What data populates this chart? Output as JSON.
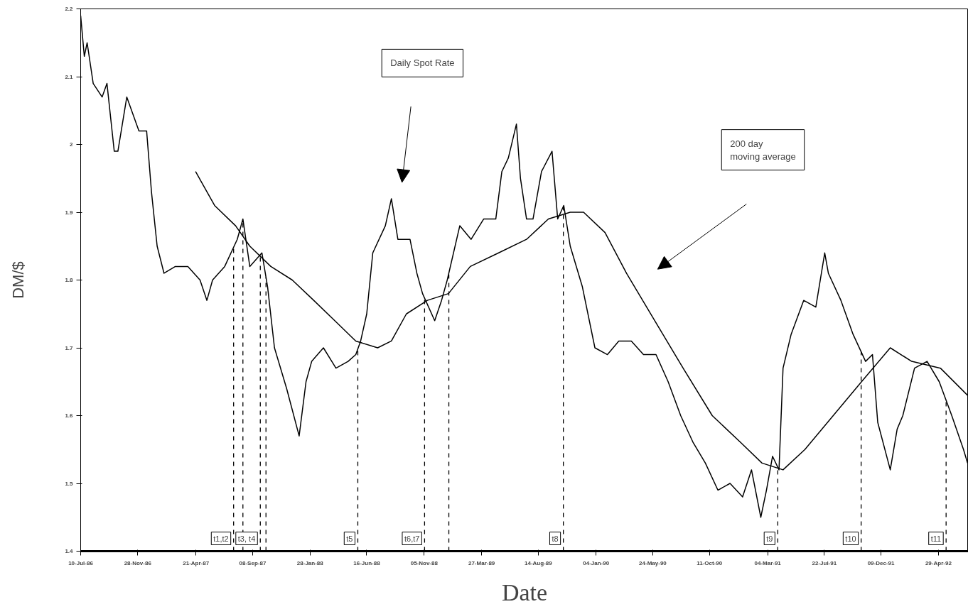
{
  "chart_data": {
    "type": "line",
    "xlabel": "Date",
    "ylabel": "DM/$",
    "xlim": [
      "1986-07-10",
      "1992-07-12"
    ],
    "ylim": [
      1.4,
      2.2
    ],
    "xticks": [
      {
        "value": "1986-07-10",
        "label": "10-Jul-86"
      },
      {
        "value": "1986-11-28",
        "label": "28-Nov-86"
      },
      {
        "value": "1987-04-21",
        "label": "21-Apr-87"
      },
      {
        "value": "1987-09-08",
        "label": "08-Sep-87"
      },
      {
        "value": "1988-01-28",
        "label": "28-Jan-88"
      },
      {
        "value": "1988-06-16",
        "label": "16-Jun-88"
      },
      {
        "value": "1988-11-05",
        "label": "05-Nov-88"
      },
      {
        "value": "1989-03-27",
        "label": "27-Mar-89"
      },
      {
        "value": "1989-08-14",
        "label": "14-Aug-89"
      },
      {
        "value": "1990-01-04",
        "label": "04-Jan-90"
      },
      {
        "value": "1990-05-24",
        "label": "24-May-90"
      },
      {
        "value": "1990-10-11",
        "label": "11-Oct-90"
      },
      {
        "value": "1991-03-04",
        "label": "04-Mar-91"
      },
      {
        "value": "1991-07-22",
        "label": "22-Jul-91"
      },
      {
        "value": "1991-12-09",
        "label": "09-Dec-91"
      },
      {
        "value": "1992-04-29",
        "label": "29-Apr-92"
      }
    ],
    "yticks": [
      1.4,
      1.5,
      1.6,
      1.7,
      1.8,
      1.9,
      2,
      2.1,
      2.2
    ],
    "grid": false,
    "marker": "none",
    "line_style": "solid",
    "series": [
      {
        "color": "#000000",
        "x": [
          "1986-07-10",
          "1986-07-19",
          "1986-07-26",
          "1986-08-10",
          "1986-09-01",
          "1986-09-13",
          "1986-10-01",
          "1986-10-10",
          "1986-11-01",
          "1986-12-01",
          "1986-12-20",
          "1987-01-01",
          "1987-01-15",
          "1987-02-01",
          "1987-03-01",
          "1987-04-01",
          "1987-05-01",
          "1987-05-18",
          "1987-06-01",
          "1987-07-01",
          "1987-08-01",
          "1987-08-15",
          "1987-09-01",
          "1987-10-01",
          "1987-10-15",
          "1987-11-01",
          "1987-12-01",
          "1988-01-01",
          "1988-01-18",
          "1988-02-01",
          "1988-03-01",
          "1988-04-01",
          "1988-05-01",
          "1988-05-20",
          "1988-06-01",
          "1988-06-16",
          "1988-07-01",
          "1988-08-01",
          "1988-08-16",
          "1988-09-01",
          "1988-10-01",
          "1988-10-18",
          "1988-11-01",
          "1988-12-01",
          "1988-12-18",
          "1989-01-01",
          "1989-02-01",
          "1989-03-01",
          "1989-04-01",
          "1989-05-01",
          "1989-05-16",
          "1989-06-01",
          "1989-06-21",
          "1989-07-01",
          "1989-07-16",
          "1989-08-01",
          "1989-08-22",
          "1989-09-17",
          "1989-10-01",
          "1989-10-16",
          "1989-11-01",
          "1989-12-01",
          "1990-01-01",
          "1990-02-01",
          "1990-03-01",
          "1990-04-01",
          "1990-05-01",
          "1990-06-01",
          "1990-07-01",
          "1990-08-01",
          "1990-09-01",
          "1990-10-01",
          "1990-11-01",
          "1990-12-01",
          "1991-01-01",
          "1991-01-23",
          "1991-02-15",
          "1991-03-01",
          "1991-03-16",
          "1991-04-01",
          "1991-04-11",
          "1991-05-01",
          "1991-06-01",
          "1991-07-01",
          "1991-07-23",
          "1991-08-01",
          "1991-09-01",
          "1991-10-01",
          "1991-11-01",
          "1991-11-18",
          "1991-12-01",
          "1992-01-01",
          "1992-01-18",
          "1992-02-01",
          "1992-03-01",
          "1992-04-01",
          "1992-05-01",
          "1992-06-01",
          "1992-06-30",
          "1992-07-10"
        ],
        "values": [
          2.19,
          2.13,
          2.15,
          2.09,
          2.07,
          2.09,
          1.99,
          1.99,
          2.07,
          2.02,
          2.02,
          1.93,
          1.85,
          1.81,
          1.82,
          1.82,
          1.8,
          1.77,
          1.8,
          1.82,
          1.86,
          1.89,
          1.82,
          1.84,
          1.79,
          1.7,
          1.64,
          1.57,
          1.65,
          1.68,
          1.7,
          1.67,
          1.68,
          1.69,
          1.71,
          1.75,
          1.84,
          1.88,
          1.92,
          1.86,
          1.86,
          1.81,
          1.78,
          1.74,
          1.77,
          1.8,
          1.88,
          1.86,
          1.89,
          1.89,
          1.96,
          1.98,
          2.03,
          1.95,
          1.89,
          1.89,
          1.96,
          1.99,
          1.89,
          1.91,
          1.85,
          1.79,
          1.7,
          1.69,
          1.71,
          1.71,
          1.69,
          1.69,
          1.65,
          1.6,
          1.56,
          1.53,
          1.49,
          1.5,
          1.48,
          1.52,
          1.45,
          1.49,
          1.54,
          1.52,
          1.67,
          1.72,
          1.77,
          1.76,
          1.84,
          1.81,
          1.77,
          1.72,
          1.68,
          1.69,
          1.59,
          1.52,
          1.58,
          1.6,
          1.67,
          1.68,
          1.65,
          1.6,
          1.55,
          1.53
        ]
      },
      {
        "color": "#000000",
        "x": [
          "1987-04-20",
          "1987-06-06",
          "1987-07-28",
          "1987-09-01",
          "1987-10-23",
          "1987-12-15",
          "1988-02-06",
          "1988-03-29",
          "1988-05-20",
          "1988-07-13",
          "1988-08-16",
          "1988-09-22",
          "1988-11-13",
          "1989-01-04",
          "1989-02-27",
          "1989-05-08",
          "1989-07-16",
          "1989-09-08",
          "1989-11-01",
          "1989-12-04",
          "1990-01-26",
          "1990-03-20",
          "1990-05-29",
          "1990-08-07",
          "1990-10-18",
          "1990-12-28",
          "1991-02-18",
          "1991-04-11",
          "1991-06-04",
          "1991-08-13",
          "1991-10-22",
          "1992-01-01",
          "1992-02-23",
          "1992-05-04",
          "1992-07-10"
        ],
        "values": [
          1.96,
          1.91,
          1.88,
          1.85,
          1.82,
          1.8,
          1.77,
          1.74,
          1.71,
          1.7,
          1.71,
          1.75,
          1.77,
          1.78,
          1.82,
          1.84,
          1.86,
          1.89,
          1.9,
          1.9,
          1.87,
          1.81,
          1.74,
          1.67,
          1.6,
          1.56,
          1.53,
          1.52,
          1.55,
          1.6,
          1.65,
          1.7,
          1.68,
          1.67,
          1.63
        ]
      }
    ],
    "ref_lines": [
      {
        "axis": "x",
        "value": "1987-07-23",
        "label": "t1,t2",
        "line_style": "dashed"
      },
      {
        "axis": "x",
        "value": "1987-08-15",
        "label": null,
        "line_style": "dashed"
      },
      {
        "axis": "x",
        "value": "1987-09-27",
        "label": "t3, t4",
        "line_style": "dashed"
      },
      {
        "axis": "x",
        "value": "1987-10-11",
        "label": null,
        "line_style": "dashed"
      },
      {
        "axis": "x",
        "value": "1988-05-25",
        "label": "t5",
        "line_style": "dashed"
      },
      {
        "axis": "x",
        "value": "1988-11-06",
        "label": "t6,t7",
        "line_style": "dashed"
      },
      {
        "axis": "x",
        "value": "1989-01-05",
        "label": null,
        "line_style": "dashed"
      },
      {
        "axis": "x",
        "value": "1989-10-15",
        "label": "t8",
        "line_style": "dashed"
      },
      {
        "axis": "x",
        "value": "1991-03-29",
        "label": "t9",
        "line_style": "dashed"
      },
      {
        "axis": "x",
        "value": "1991-10-21",
        "label": "t10",
        "line_style": "dashed"
      },
      {
        "axis": "x",
        "value": "1992-05-18",
        "label": "t11",
        "line_style": "dashed"
      }
    ],
    "annotations": [
      "Daily Spot Rate",
      "200 day\nmoving average"
    ]
  }
}
